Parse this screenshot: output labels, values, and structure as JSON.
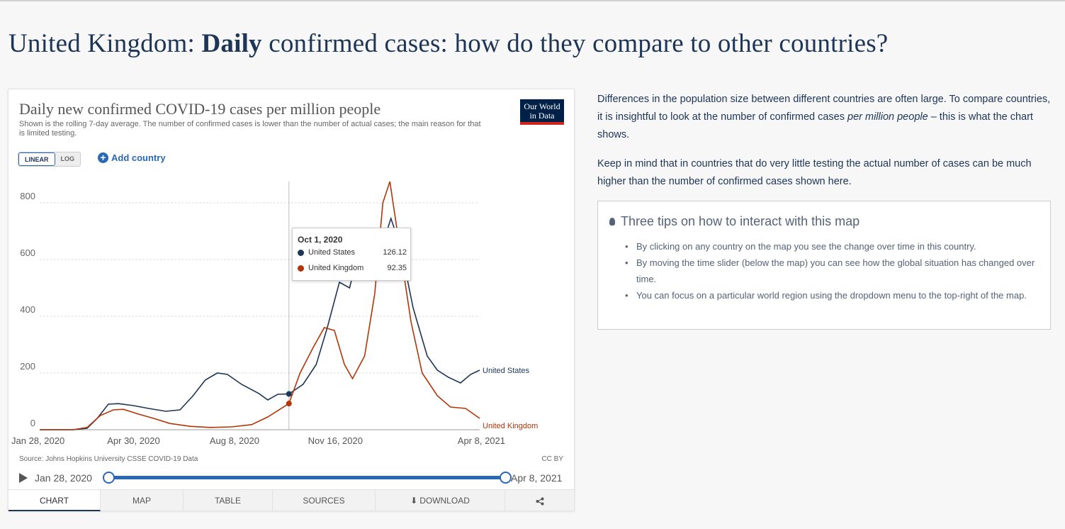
{
  "page": {
    "title_prefix": "United Kingdom: ",
    "title_bold": "Daily",
    "title_suffix": " confirmed cases: how do they compare to other countries?"
  },
  "chart_card": {
    "logo_line1": "Our World",
    "logo_line2": "in Data",
    "scale_linear": "LINEAR",
    "scale_log": "LOG",
    "add_country": "Add country",
    "source": "Source: Johns Hopkins University CSSE COVID-19 Data",
    "license": "CC BY",
    "timeline_start": "Jan 28, 2020",
    "timeline_end": "Apr 8, 2021",
    "tabs": [
      "CHART",
      "MAP",
      "TABLE",
      "SOURCES",
      "DOWNLOAD"
    ],
    "tooltip": {
      "date": "Oct 1, 2020",
      "rows": [
        {
          "name": "United States",
          "value": "126.12",
          "color": "#1d3557"
        },
        {
          "name": "United Kingdom",
          "value": "92.35",
          "color": "#b13507"
        }
      ]
    }
  },
  "chart_data": {
    "type": "line",
    "title": "Daily new confirmed COVID-19 cases per million people",
    "subtitle": "Shown is the rolling 7-day average. The number of confirmed cases is lower than the number of actual cases; the main reason for that is limited testing.",
    "xlabel": "",
    "ylabel": "",
    "ylim": [
      0,
      800
    ],
    "y_ticks": [
      0,
      200,
      400,
      600,
      800
    ],
    "x_tick_labels": [
      "Jan 28, 2020",
      "Apr 30, 2020",
      "Aug 8, 2020",
      "Nov 16, 2020",
      "Apr 8, 2021"
    ],
    "x_range": [
      "2020-01-28",
      "2021-04-08"
    ],
    "grid": "horizontal dashed",
    "legend": "line end labels",
    "series": [
      {
        "name": "United States",
        "color": "#1d3557",
        "points": [
          [
            "2020-01-28",
            0
          ],
          [
            "2020-03-01",
            0
          ],
          [
            "2020-03-15",
            5
          ],
          [
            "2020-03-25",
            40
          ],
          [
            "2020-04-05",
            90
          ],
          [
            "2020-04-15",
            92
          ],
          [
            "2020-04-30",
            85
          ],
          [
            "2020-05-15",
            75
          ],
          [
            "2020-06-01",
            65
          ],
          [
            "2020-06-15",
            70
          ],
          [
            "2020-06-28",
            120
          ],
          [
            "2020-07-10",
            175
          ],
          [
            "2020-07-22",
            200
          ],
          [
            "2020-08-01",
            195
          ],
          [
            "2020-08-15",
            160
          ],
          [
            "2020-09-01",
            128
          ],
          [
            "2020-09-10",
            105
          ],
          [
            "2020-09-20",
            125
          ],
          [
            "2020-10-01",
            126.12
          ],
          [
            "2020-10-15",
            160
          ],
          [
            "2020-10-28",
            230
          ],
          [
            "2020-11-08",
            360
          ],
          [
            "2020-11-20",
            520
          ],
          [
            "2020-11-30",
            500
          ],
          [
            "2020-12-10",
            640
          ],
          [
            "2020-12-18",
            690
          ],
          [
            "2020-12-28",
            600
          ],
          [
            "2021-01-10",
            745
          ],
          [
            "2021-01-20",
            640
          ],
          [
            "2021-02-01",
            430
          ],
          [
            "2021-02-15",
            260
          ],
          [
            "2021-02-25",
            210
          ],
          [
            "2021-03-08",
            185
          ],
          [
            "2021-03-20",
            165
          ],
          [
            "2021-03-30",
            195
          ],
          [
            "2021-04-08",
            210
          ]
        ]
      },
      {
        "name": "United Kingdom",
        "color": "#b13507",
        "points": [
          [
            "2020-01-28",
            0
          ],
          [
            "2020-03-01",
            0
          ],
          [
            "2020-03-15",
            8
          ],
          [
            "2020-03-28",
            50
          ],
          [
            "2020-04-10",
            70
          ],
          [
            "2020-04-20",
            72
          ],
          [
            "2020-05-05",
            55
          ],
          [
            "2020-05-20",
            40
          ],
          [
            "2020-06-05",
            22
          ],
          [
            "2020-06-25",
            12
          ],
          [
            "2020-07-15",
            8
          ],
          [
            "2020-08-05",
            10
          ],
          [
            "2020-08-25",
            18
          ],
          [
            "2020-09-10",
            45
          ],
          [
            "2020-10-01",
            92.35
          ],
          [
            "2020-10-12",
            200
          ],
          [
            "2020-10-25",
            290
          ],
          [
            "2020-11-05",
            360
          ],
          [
            "2020-11-15",
            350
          ],
          [
            "2020-11-25",
            230
          ],
          [
            "2020-12-03",
            180
          ],
          [
            "2020-12-15",
            260
          ],
          [
            "2020-12-25",
            480
          ],
          [
            "2021-01-02",
            800
          ],
          [
            "2021-01-09",
            875
          ],
          [
            "2021-01-18",
            660
          ],
          [
            "2021-01-30",
            380
          ],
          [
            "2021-02-10",
            200
          ],
          [
            "2021-02-25",
            120
          ],
          [
            "2021-03-10",
            80
          ],
          [
            "2021-03-25",
            75
          ],
          [
            "2021-04-08",
            40
          ]
        ]
      }
    ],
    "highlight_date": "2020-10-01"
  },
  "article": {
    "p1_a": "Differences in the population size between different countries are often large. To compare countries, it is insightful to look at the number of confirmed cases ",
    "p1_em": "per million people",
    "p1_b": " – this is what the chart shows.",
    "p2": "Keep in mind that in countries that do very little testing the actual number of cases can be much higher than the number of confirmed cases shown here."
  },
  "tips": {
    "title": "Three tips on how to interact with this map",
    "items": [
      "By clicking on any country on the map you see the change over time in this country.",
      "By moving the time slider (below the map) you can see how the global situation has changed over time.",
      "You can focus on a particular world region using the dropdown menu to the top-right of the map."
    ]
  }
}
